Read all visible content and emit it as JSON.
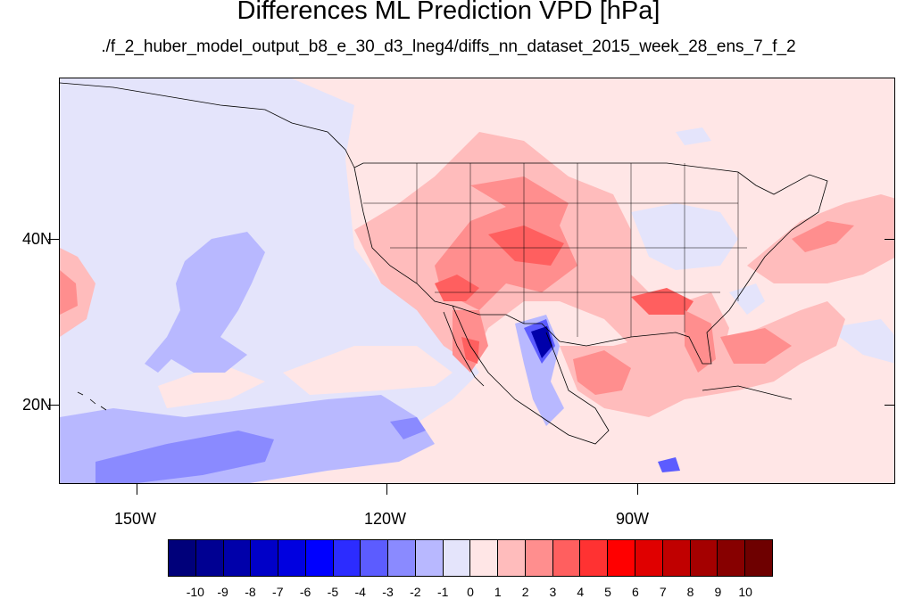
{
  "title": "Differences ML Prediction VPD [hPa]",
  "subtitle": "./f_2_huber_model_output_b8_e_30_d3_lneg4/diffs_nn_dataset_2015_week_28_ens_7_f_2",
  "lat_labels": [
    "40N",
    "20N"
  ],
  "lon_labels": [
    "150W",
    "120W",
    "90W"
  ],
  "colorbar": {
    "labels": [
      "-10",
      "-9",
      "-8",
      "-7",
      "-6",
      "-5",
      "-4",
      "-3",
      "-2",
      "-1",
      "0",
      "1",
      "2",
      "3",
      "4",
      "5",
      "6",
      "7",
      "8",
      "9",
      "10"
    ],
    "colors": [
      "#00007a",
      "#000092",
      "#0000aa",
      "#0000c8",
      "#0000e0",
      "#0000ff",
      "#2c2cff",
      "#5c5cff",
      "#8a8aff",
      "#b8b8ff",
      "#e4e4fb",
      "#ffe6e6",
      "#ffbcbc",
      "#ff8e8e",
      "#ff5f5f",
      "#ff3232",
      "#ff0000",
      "#e00000",
      "#c00000",
      "#a40000",
      "#870000",
      "#6e0000"
    ]
  },
  "chart_data": {
    "type": "heatmap",
    "title": "Differences ML Prediction VPD [hPa]",
    "subtitle": "./f_2_huber_model_output_b8_e_30_d3_lneg4/diffs_nn_dataset_2015_week_28_ens_7_f_2",
    "lon_range": [
      -160,
      -60
    ],
    "lat_range": [
      10,
      59
    ],
    "value_range": [
      -10,
      10
    ],
    "lat_ticks": [
      "40N",
      "20N"
    ],
    "lon_ticks": [
      "150W",
      "120W",
      "90W"
    ],
    "colorbar_labels": [
      "-10",
      "-9",
      "-8",
      "-7",
      "-6",
      "-5",
      "-4",
      "-3",
      "-2",
      "-1",
      "0",
      "1",
      "2",
      "3",
      "4",
      "5",
      "6",
      "7",
      "8",
      "9",
      "10"
    ]
  }
}
